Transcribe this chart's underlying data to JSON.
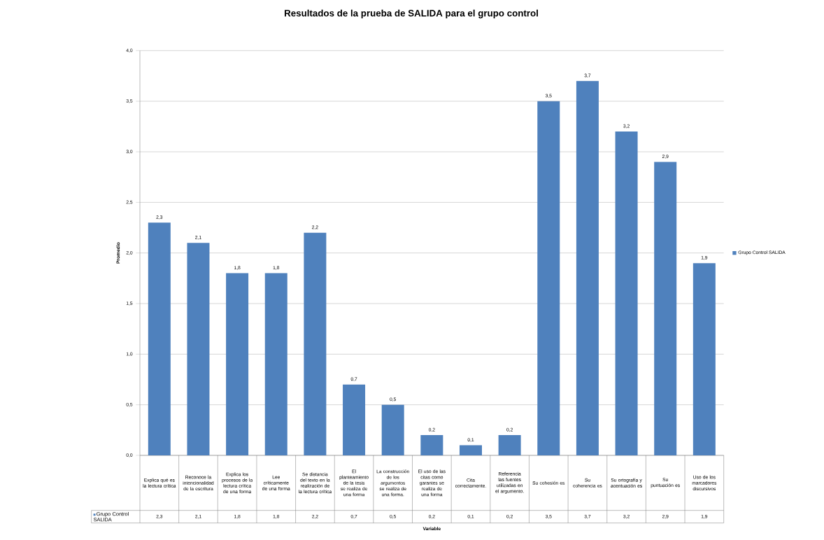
{
  "chart_data": {
    "type": "bar",
    "title": "Resultados de la prueba de SALIDA para el grupo control",
    "annotations": [
      "Variable"
    ],
    "ylabel": "Promedio",
    "categories": [
      "Explica qué es la lectura crítica",
      "Reconoce la intencionalidad de la escritura",
      "Explica los procesos de la lectura crítica de una forma",
      "Lee críticamente de una forma",
      "Se distancia del texto en la realización de la lectura crítica",
      "El planteamiento de la tesis se realiza de una forma",
      "La construcción de los argumentos se realiza de una forma.",
      "El uso de las citas como garantes se realiza de una forma",
      "Cita correctamente.",
      "Referencia las fuentes utilizadas en el argumento.",
      "Su cohesión es",
      "Su coherencia es",
      "Su ortografía y acentuación es",
      "Su puntuación es",
      "Uso de los marcadores discursivos"
    ],
    "series": [
      {
        "name": "Grupo Control SALIDA",
        "color": "#4f81bd",
        "values": [
          2.3,
          2.1,
          1.8,
          1.8,
          2.2,
          0.7,
          0.5,
          0.2,
          0.1,
          0.2,
          3.5,
          3.7,
          3.2,
          2.9,
          1.9
        ],
        "value_labels": [
          "2,3",
          "2,1",
          "1,8",
          "1,8",
          "2,2",
          "0,7",
          "0,5",
          "0,2",
          "0,1",
          "0,2",
          "3,5",
          "3,7",
          "3,2",
          "2,9",
          "1,9"
        ]
      }
    ],
    "ylim": [
      0,
      4
    ],
    "yticks": [
      {
        "value": 0,
        "label": "0,0"
      },
      {
        "value": 0.5,
        "label": "0,5"
      },
      {
        "value": 1,
        "label": "1,0"
      },
      {
        "value": 1.5,
        "label": "1,5"
      },
      {
        "value": 2,
        "label": "2,0"
      },
      {
        "value": 2.5,
        "label": "2,5"
      },
      {
        "value": 3,
        "label": "3,0"
      },
      {
        "value": 3.5,
        "label": "3,5"
      },
      {
        "value": 4,
        "label": "4,0"
      }
    ],
    "grid": "y",
    "legend": "right"
  }
}
